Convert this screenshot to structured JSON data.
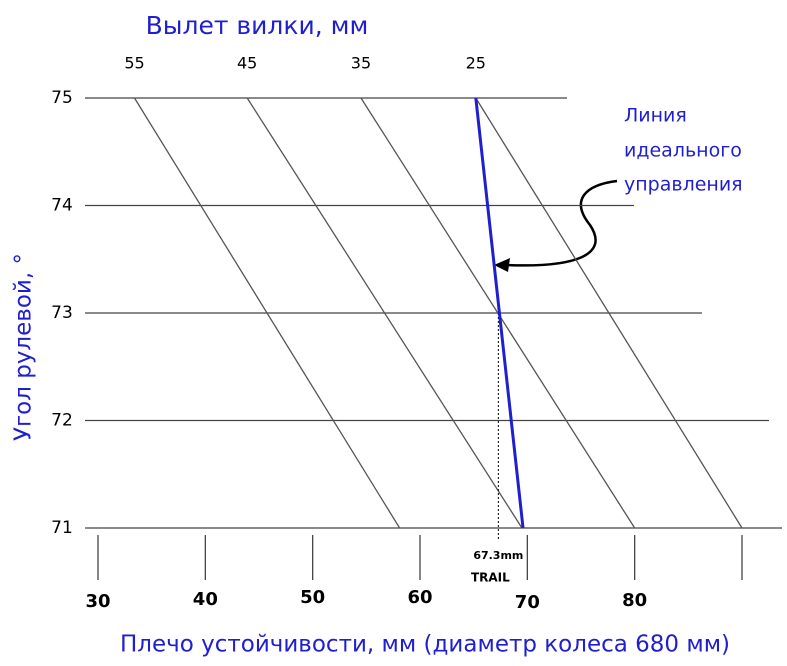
{
  "chart_data": {
    "type": "line",
    "title": "Вылет вилки, мм",
    "xlabel": "Плечо устойчивости, мм (диаметр колеса 680 мм)",
    "ylabel": "Угол рулевой, °",
    "xlim": [
      30,
      90
    ],
    "xticks": [
      30,
      40,
      50,
      60,
      70,
      80
    ],
    "ylim": [
      71,
      75
    ],
    "yticks": [
      71,
      72,
      73,
      74,
      75
    ],
    "angles": [
      75,
      71
    ],
    "offset_lines": [
      {
        "offset": 55,
        "trail": [
          33.4,
          58.1
        ]
      },
      {
        "offset": 45,
        "trail": [
          43.9,
          69.5
        ]
      },
      {
        "offset": 35,
        "trail": [
          54.5,
          80
        ]
      },
      {
        "offset": 25,
        "trail": [
          65.2,
          90
        ]
      }
    ],
    "offset_color": "#555555",
    "ideal_line": {
      "trail": [
        65.2,
        69.6
      ],
      "color": "#1f1fcf"
    },
    "marker": {
      "value": 67.3,
      "label": "67.3mm",
      "sublabel": "TRAIL"
    },
    "annotation": [
      "Линия",
      "идеального",
      "управления"
    ]
  }
}
